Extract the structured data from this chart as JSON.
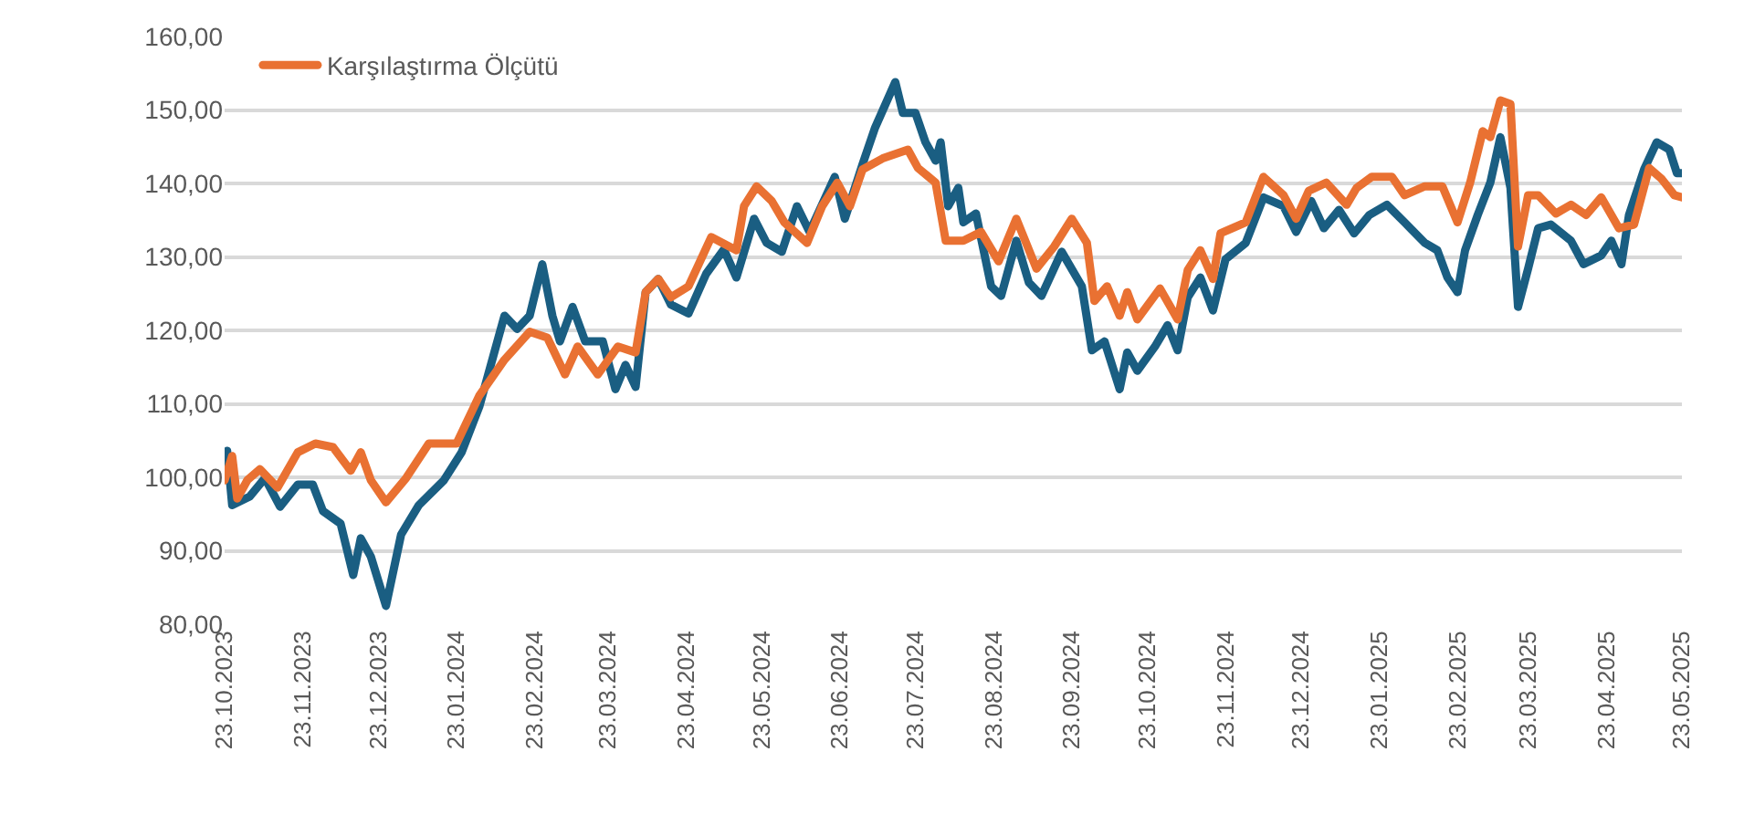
{
  "chart_data": {
    "type": "line",
    "series": [
      {
        "color": "#1a5e82",
        "x": [
          "2023-10-23",
          "2023-10-24",
          "2023-10-26",
          "2023-11-02",
          "2023-11-08",
          "2023-11-14",
          "2023-11-21",
          "2023-11-27",
          "2023-12-01",
          "2023-12-08",
          "2023-12-13",
          "2023-12-16",
          "2023-12-20",
          "2023-12-26",
          "2024-01-01",
          "2024-01-08",
          "2024-01-18",
          "2024-01-25",
          "2024-02-01",
          "2024-02-11",
          "2024-02-16",
          "2024-02-21",
          "2024-02-26",
          "2024-03-01",
          "2024-03-04",
          "2024-03-09",
          "2024-03-14",
          "2024-03-21",
          "2024-03-26",
          "2024-03-30",
          "2024-04-03",
          "2024-04-07",
          "2024-04-12",
          "2024-04-17",
          "2024-04-24",
          "2024-05-01",
          "2024-05-08",
          "2024-05-13",
          "2024-05-20",
          "2024-05-25",
          "2024-05-31",
          "2024-06-06",
          "2024-06-11",
          "2024-06-21",
          "2024-06-25",
          "2024-07-02",
          "2024-07-07",
          "2024-07-15",
          "2024-07-18",
          "2024-07-23",
          "2024-07-27",
          "2024-07-31",
          "2024-08-02",
          "2024-08-05",
          "2024-08-09",
          "2024-08-11",
          "2024-08-16",
          "2024-08-22",
          "2024-08-26",
          "2024-09-01",
          "2024-09-06",
          "2024-09-11",
          "2024-09-19",
          "2024-09-27",
          "2024-10-01",
          "2024-10-06",
          "2024-10-12",
          "2024-10-15",
          "2024-10-19",
          "2024-10-26",
          "2024-10-31",
          "2024-11-04",
          "2024-11-08",
          "2024-11-13",
          "2024-11-18",
          "2024-11-23",
          "2024-12-01",
          "2024-12-08",
          "2024-12-16",
          "2024-12-21",
          "2024-12-27",
          "2025-01-01",
          "2025-01-07",
          "2025-01-13",
          "2025-01-19",
          "2025-01-26",
          "2025-02-02",
          "2025-02-10",
          "2025-02-15",
          "2025-02-19",
          "2025-02-23",
          "2025-02-26",
          "2025-03-03",
          "2025-03-08",
          "2025-03-12",
          "2025-03-16",
          "2025-03-19",
          "2025-03-23",
          "2025-03-27",
          "2025-04-01",
          "2025-04-09",
          "2025-04-14",
          "2025-04-21",
          "2025-04-25",
          "2025-04-29",
          "2025-05-02",
          "2025-05-08",
          "2025-05-13",
          "2025-05-18",
          "2025-05-21",
          "2025-05-23"
        ],
        "values": [
          100.0,
          103.6,
          96.2,
          97.4,
          99.9,
          96.0,
          99.0,
          99.0,
          95.4,
          93.7,
          86.7,
          91.7,
          89.2,
          82.5,
          92.2,
          96.2,
          99.6,
          103.4,
          109.6,
          122.0,
          120.2,
          122.0,
          129.0,
          122.0,
          118.5,
          123.2,
          118.5,
          118.5,
          112.0,
          115.3,
          112.3,
          125.2,
          127.0,
          123.5,
          122.3,
          127.7,
          131.0,
          127.2,
          135.2,
          131.9,
          130.7,
          136.9,
          133.4,
          140.9,
          135.2,
          142.6,
          147.6,
          153.8,
          149.6,
          149.6,
          145.6,
          143.1,
          145.6,
          136.9,
          139.4,
          134.7,
          135.9,
          126.0,
          124.7,
          132.2,
          126.5,
          124.7,
          130.7,
          126.0,
          117.3,
          118.5,
          112.0,
          117.0,
          114.5,
          117.8,
          120.7,
          117.3,
          124.5,
          127.2,
          122.7,
          129.7,
          131.9,
          138.1,
          136.9,
          133.4,
          137.6,
          133.9,
          136.4,
          133.2,
          135.7,
          137.1,
          134.7,
          131.9,
          130.9,
          127.2,
          125.2,
          130.9,
          135.7,
          140.1,
          146.3,
          139.4,
          123.2,
          128.4,
          133.9,
          134.4,
          132.2,
          129.0,
          130.2,
          132.2,
          129.0,
          135.7,
          141.9,
          145.6,
          144.6,
          141.4,
          141.4
        ]
      },
      {
        "name": "Karşılaştırma Ölçütü",
        "color": "#e97132",
        "x": [
          "2023-10-23",
          "2023-10-26",
          "2023-10-28",
          "2023-11-01",
          "2023-11-06",
          "2023-11-13",
          "2023-11-21",
          "2023-11-28",
          "2023-12-05",
          "2023-12-12",
          "2023-12-16",
          "2023-12-20",
          "2023-12-26",
          "2024-01-03",
          "2024-01-12",
          "2024-01-23",
          "2024-02-01",
          "2024-02-11",
          "2024-02-21",
          "2024-02-28",
          "2024-03-06",
          "2024-03-11",
          "2024-03-19",
          "2024-03-27",
          "2024-04-03",
          "2024-04-07",
          "2024-04-12",
          "2024-04-17",
          "2024-04-24",
          "2024-05-03",
          "2024-05-13",
          "2024-05-16",
          "2024-05-21",
          "2024-05-27",
          "2024-06-01",
          "2024-06-10",
          "2024-06-16",
          "2024-06-22",
          "2024-06-27",
          "2024-07-02",
          "2024-07-10",
          "2024-07-20",
          "2024-07-24",
          "2024-07-31",
          "2024-08-04",
          "2024-08-11",
          "2024-08-18",
          "2024-08-25",
          "2024-09-01",
          "2024-09-09",
          "2024-09-16",
          "2024-09-23",
          "2024-09-29",
          "2024-10-02",
          "2024-10-07",
          "2024-10-12",
          "2024-10-15",
          "2024-10-19",
          "2024-10-28",
          "2024-11-04",
          "2024-11-08",
          "2024-11-13",
          "2024-11-18",
          "2024-11-21",
          "2024-12-01",
          "2024-12-08",
          "2024-12-16",
          "2024-12-21",
          "2024-12-26",
          "2025-01-02",
          "2025-01-10",
          "2025-01-14",
          "2025-01-20",
          "2025-01-28",
          "2025-02-02",
          "2025-02-10",
          "2025-02-17",
          "2025-02-23",
          "2025-02-28",
          "2025-03-05",
          "2025-03-08",
          "2025-03-12",
          "2025-03-16",
          "2025-03-19",
          "2025-03-23",
          "2025-03-27",
          "2025-04-03",
          "2025-04-09",
          "2025-04-15",
          "2025-04-21",
          "2025-04-28",
          "2025-05-04",
          "2025-05-10",
          "2025-05-15",
          "2025-05-20",
          "2025-05-23"
        ],
        "values": [
          99.6,
          102.9,
          97.1,
          99.6,
          101.1,
          98.6,
          103.4,
          104.6,
          104.1,
          100.9,
          103.4,
          99.6,
          96.6,
          99.9,
          104.6,
          104.6,
          111.1,
          116.0,
          119.8,
          119.0,
          114.0,
          117.8,
          114.0,
          117.8,
          117.0,
          125.2,
          127.0,
          124.5,
          126.0,
          132.7,
          130.9,
          136.9,
          139.6,
          137.6,
          134.7,
          131.9,
          136.9,
          140.1,
          136.9,
          141.9,
          143.4,
          144.6,
          142.1,
          140.1,
          132.2,
          132.2,
          133.4,
          129.4,
          135.2,
          128.4,
          131.4,
          135.2,
          131.9,
          124.0,
          126.0,
          122.0,
          125.2,
          121.5,
          125.7,
          121.5,
          128.2,
          130.9,
          127.0,
          133.2,
          134.7,
          140.9,
          138.4,
          135.2,
          139.0,
          140.1,
          137.1,
          139.4,
          140.9,
          140.9,
          138.4,
          139.6,
          139.6,
          134.7,
          140.1,
          147.1,
          146.3,
          151.3,
          150.8,
          131.4,
          138.4,
          138.4,
          135.9,
          137.1,
          135.7,
          138.1,
          133.9,
          134.4,
          142.1,
          140.6,
          138.4,
          138.1
        ]
      }
    ],
    "xlim": [
      "2023-10-23",
      "2025-05-23"
    ],
    "xticks": [
      {
        "value": "2023-10-23",
        "label": "23.10.2023"
      },
      {
        "value": "2023-11-23",
        "label": "23.11.2023"
      },
      {
        "value": "2023-12-23",
        "label": "23.12.2023"
      },
      {
        "value": "2024-01-23",
        "label": "23.01.2024"
      },
      {
        "value": "2024-02-23",
        "label": "23.02.2024"
      },
      {
        "value": "2024-03-23",
        "label": "23.03.2024"
      },
      {
        "value": "2024-04-23",
        "label": "23.04.2024"
      },
      {
        "value": "2024-05-23",
        "label": "23.05.2024"
      },
      {
        "value": "2024-06-23",
        "label": "23.06.2024"
      },
      {
        "value": "2024-07-23",
        "label": "23.07.2024"
      },
      {
        "value": "2024-08-23",
        "label": "23.08.2024"
      },
      {
        "value": "2024-09-23",
        "label": "23.09.2024"
      },
      {
        "value": "2024-10-23",
        "label": "23.10.2024"
      },
      {
        "value": "2024-11-23",
        "label": "23.11.2024"
      },
      {
        "value": "2024-12-23",
        "label": "23.12.2024"
      },
      {
        "value": "2025-01-23",
        "label": "23.01.2025"
      },
      {
        "value": "2025-02-23",
        "label": "23.02.2025"
      },
      {
        "value": "2025-03-23",
        "label": "23.03.2025"
      },
      {
        "value": "2025-04-23",
        "label": "23.04.2025"
      },
      {
        "value": "2025-05-23",
        "label": "23.05.2025"
      }
    ],
    "ylim": [
      80,
      160
    ],
    "yticks": [
      {
        "value": 80,
        "label": "80,00"
      },
      {
        "value": 90,
        "label": "90,00"
      },
      {
        "value": 100,
        "label": "100,00"
      },
      {
        "value": 110,
        "label": "110,00"
      },
      {
        "value": 120,
        "label": "120,00"
      },
      {
        "value": 130,
        "label": "130,00"
      },
      {
        "value": 140,
        "label": "140,00"
      },
      {
        "value": 150,
        "label": "150,00"
      },
      {
        "value": 160,
        "label": "160,00"
      }
    ],
    "grid": "y",
    "legend": "top left",
    "marker": "none",
    "line_style": "solid"
  }
}
